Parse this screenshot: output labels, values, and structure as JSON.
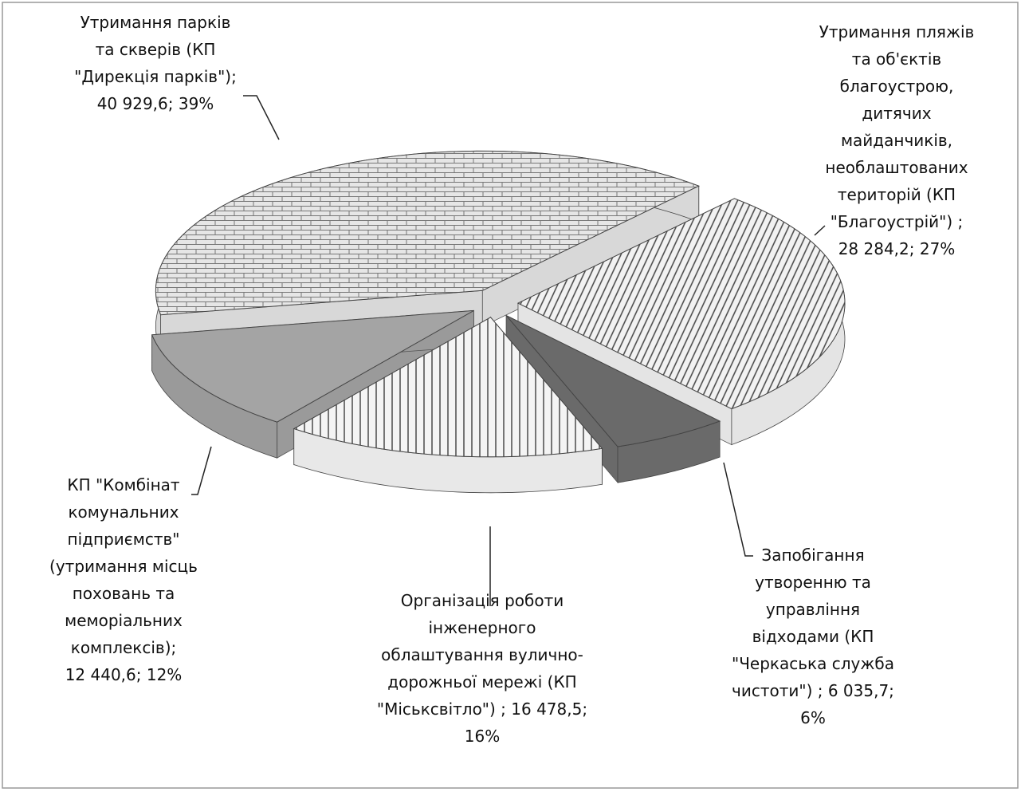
{
  "chart_data": {
    "type": "pie",
    "labels": [
      [
        "Утримання  парків",
        "та скверів (КП",
        "\"Дирекція парків\");",
        "40 929,6; 39%"
      ],
      [
        "Утримання пляжів",
        "та об'єктів",
        "благоустрою,",
        "дитячих",
        "майданчиків,",
        "необлаштованих",
        "територій (КП",
        "\"Благоустрій\") ;",
        "28 284,2; 27%"
      ],
      [
        "Запобігання",
        "утворенню та",
        "управління",
        "відходами (КП",
        "\"Черкаська служба",
        "чистоти\") ; 6 035,7;",
        "6%"
      ],
      [
        "Організація роботи",
        "інженерного",
        "облаштування вулично-",
        "дорожньої мережі (КП",
        "\"Міськсвітло\") ; 16 478,5;",
        "16%"
      ],
      [
        "КП \"Комбінат",
        "комунальних",
        "підприємств\"",
        "(утримання місць",
        "поховань та",
        "меморіальних",
        "комплексів);",
        "12 440,6; 12%"
      ]
    ],
    "values": [
      40929.6,
      28284.2,
      6035.7,
      16478.5,
      12440.6
    ],
    "colors": [
      "#d8d8d8",
      "#e4e4e4",
      "#6a6a6a",
      "#e8e8e8",
      "#9a9a9a"
    ]
  }
}
